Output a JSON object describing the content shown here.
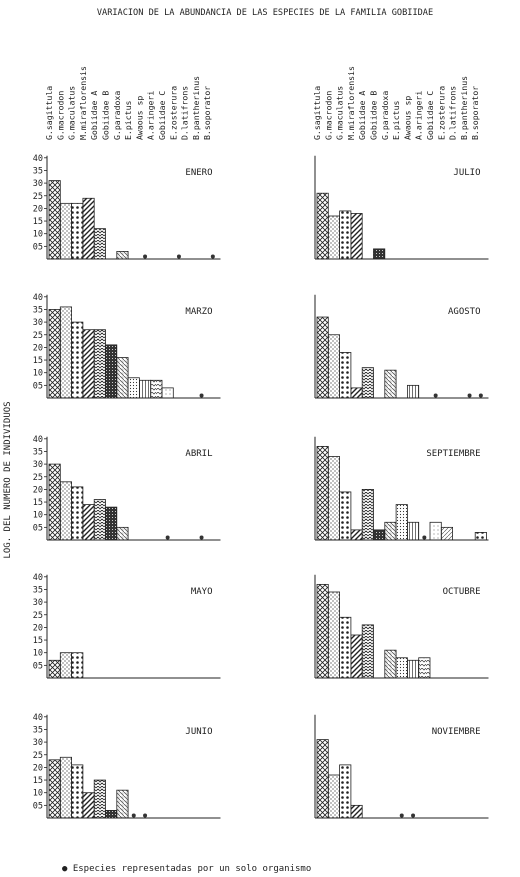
{
  "figure": {
    "title": "VARIACION DE LA ABUNDANCIA DE LAS ESPECIES DE LA FAMILIA GOBIIDAE",
    "ylabel": "LOG. DEL NUMERO DE INDIVIDUOS",
    "footnote": "● Especies representadas por un solo organismo"
  },
  "species_left": [
    "G.sagittula",
    "G.macrodon",
    "G.maculatus",
    "M.miraflorensis",
    "Gobiidae A",
    "Gobiidae B",
    "G.paradoxa",
    "E.pictus",
    "Awaous sp",
    "A.aringeri",
    "Gobiidae C",
    "E.zosterura",
    "D.latifrons",
    "B.pantherinus",
    "B.soporator"
  ],
  "species_right": [
    "G.sagittula",
    "G.macrodon",
    "G.maculatus",
    "M.miraflorensis",
    "Gobiidae A",
    "Gobiidae B",
    "G.paradoxa",
    "E.pictus",
    "Awaous sp",
    "A.aringeri",
    "Gobiidae C",
    "E.zosterura",
    "D.latifrons",
    "B.pantherinus",
    "B.soporator"
  ],
  "yticks": [
    "40",
    "35",
    "30",
    "25",
    "20",
    "15",
    "10",
    "05"
  ],
  "chart_data": [
    {
      "type": "bar",
      "title": "ENERO",
      "categories": [
        "G.sagittula",
        "G.macrodon",
        "G.maculatus",
        "M.miraflorensis",
        "Gobiidae A",
        "Gobiidae B",
        "G.paradoxa",
        "E.pictus",
        "Awaous sp",
        "A.aringeri",
        "Gobiidae C",
        "E.zosterura",
        "D.latifrons",
        "B.pantherinus",
        "B.soporator"
      ],
      "values": [
        3.1,
        2.2,
        2.2,
        2.4,
        1.2,
        0,
        0.3,
        0,
        0,
        0,
        0,
        0,
        0,
        0,
        0
      ],
      "single_organism": [
        8,
        11,
        14
      ],
      "ylim": [
        0,
        4.0
      ]
    },
    {
      "type": "bar",
      "title": "JULIO",
      "categories": [
        "G.sagittula",
        "G.macrodon",
        "G.maculatus",
        "M.miraflorensis",
        "Gobiidae A",
        "Gobiidae B",
        "G.paradoxa",
        "E.pictus",
        "Awaous sp",
        "A.aringeri",
        "Gobiidae C",
        "E.zosterura",
        "D.latifrons",
        "B.pantherinus",
        "B.soporator"
      ],
      "values": [
        2.6,
        1.7,
        1.9,
        1.8,
        0,
        0.4,
        0,
        0,
        0,
        0,
        0,
        0,
        0,
        0,
        0
      ],
      "single_organism": [],
      "ylim": [
        0,
        4.0
      ]
    },
    {
      "type": "bar",
      "title": "MARZO",
      "categories": [
        "G.sagittula",
        "G.macrodon",
        "G.maculatus",
        "M.miraflorensis",
        "Gobiidae A",
        "Gobiidae B",
        "G.paradoxa",
        "E.pictus",
        "Awaous sp",
        "A.aringeri",
        "Gobiidae C",
        "E.zosterura",
        "D.latifrons",
        "B.pantherinus",
        "B.soporator"
      ],
      "values": [
        3.5,
        3.6,
        3.0,
        2.7,
        2.7,
        2.1,
        1.6,
        0.8,
        0.7,
        0.7,
        0.4,
        0,
        0,
        0,
        0
      ],
      "single_organism": [
        13
      ],
      "ylim": [
        0,
        4.0
      ]
    },
    {
      "type": "bar",
      "title": "AGOSTO",
      "categories": [
        "G.sagittula",
        "G.macrodon",
        "G.maculatus",
        "M.miraflorensis",
        "Gobiidae A",
        "Gobiidae B",
        "G.paradoxa",
        "E.pictus",
        "Awaous sp",
        "A.aringeri",
        "Gobiidae C",
        "E.zosterura",
        "D.latifrons",
        "B.pantherinus",
        "B.soporator"
      ],
      "values": [
        3.2,
        2.5,
        1.8,
        0.4,
        1.2,
        0,
        1.1,
        0,
        0.5,
        0,
        0,
        0,
        0,
        0,
        0
      ],
      "single_organism": [
        10,
        13,
        14
      ],
      "ylim": [
        0,
        4.0
      ]
    },
    {
      "type": "bar",
      "title": "ABRIL",
      "categories": [
        "G.sagittula",
        "G.macrodon",
        "G.maculatus",
        "M.miraflorensis",
        "Gobiidae A",
        "Gobiidae B",
        "G.paradoxa",
        "E.pictus",
        "Awaous sp",
        "A.aringeri",
        "Gobiidae C",
        "E.zosterura",
        "D.latifrons",
        "B.pantherinus",
        "B.soporator"
      ],
      "values": [
        3.0,
        2.3,
        2.1,
        1.4,
        1.6,
        1.3,
        0.5,
        0,
        0,
        0,
        0,
        0,
        0,
        0,
        0
      ],
      "single_organism": [
        10,
        13
      ],
      "ylim": [
        0,
        4.0
      ]
    },
    {
      "type": "bar",
      "title": "SEPTIEMBRE",
      "categories": [
        "G.sagittula",
        "G.macrodon",
        "G.maculatus",
        "M.miraflorensis",
        "Gobiidae A",
        "Gobiidae B",
        "G.paradoxa",
        "E.pictus",
        "Awaous sp",
        "A.aringeri",
        "Gobiidae C",
        "E.zosterura",
        "D.latifrons",
        "B.pantherinus",
        "B.soporator"
      ],
      "values": [
        3.7,
        3.3,
        1.9,
        0.4,
        2.0,
        0.4,
        0.7,
        1.4,
        0.7,
        0,
        0.7,
        0.5,
        0,
        0,
        0.3
      ],
      "single_organism": [
        9
      ],
      "ylim": [
        0,
        4.0
      ]
    },
    {
      "type": "bar",
      "title": "MAYO",
      "categories": [
        "G.sagittula",
        "G.macrodon",
        "G.maculatus",
        "M.miraflorensis",
        "Gobiidae A",
        "Gobiidae B",
        "G.paradoxa",
        "E.pictus",
        "Awaous sp",
        "A.aringeri",
        "Gobiidae C",
        "E.zosterura",
        "D.latifrons",
        "B.pantherinus",
        "B.soporator"
      ],
      "values": [
        0.7,
        1.0,
        1.0,
        0,
        0,
        0,
        0,
        0,
        0,
        0,
        0,
        0,
        0,
        0,
        0
      ],
      "single_organism": [],
      "ylim": [
        0,
        4.0
      ]
    },
    {
      "type": "bar",
      "title": "OCTUBRE",
      "categories": [
        "G.sagittula",
        "G.macrodon",
        "G.maculatus",
        "M.miraflorensis",
        "Gobiidae A",
        "Gobiidae B",
        "G.paradoxa",
        "E.pictus",
        "Awaous sp",
        "A.aringeri",
        "Gobiidae C",
        "E.zosterura",
        "D.latifrons",
        "B.pantherinus",
        "B.soporator"
      ],
      "values": [
        3.7,
        3.4,
        2.4,
        1.7,
        2.1,
        0,
        1.1,
        0.8,
        0.7,
        0.8,
        0,
        0,
        0,
        0,
        0
      ],
      "single_organism": [],
      "ylim": [
        0,
        4.0
      ]
    },
    {
      "type": "bar",
      "title": "JUNIO",
      "categories": [
        "G.sagittula",
        "G.macrodon",
        "G.maculatus",
        "M.miraflorensis",
        "Gobiidae A",
        "Gobiidae B",
        "G.paradoxa",
        "E.pictus",
        "Awaous sp",
        "A.aringeri",
        "Gobiidae C",
        "E.zosterura",
        "D.latifrons",
        "B.pantherinus",
        "B.soporator"
      ],
      "values": [
        2.3,
        2.4,
        2.1,
        1.0,
        1.5,
        0.3,
        1.1,
        0,
        0,
        0,
        0,
        0,
        0,
        0,
        0
      ],
      "single_organism": [
        7,
        8
      ],
      "ylim": [
        0,
        4.0
      ]
    },
    {
      "type": "bar",
      "title": "NOVIEMBRE",
      "categories": [
        "G.sagittula",
        "G.macrodon",
        "G.maculatus",
        "M.miraflorensis",
        "Gobiidae A",
        "Gobiidae B",
        "G.paradoxa",
        "E.pictus",
        "Awaous sp",
        "A.aringeri",
        "Gobiidae C",
        "E.zosterura",
        "D.latifrons",
        "B.pantherinus",
        "B.soporator"
      ],
      "values": [
        3.1,
        1.7,
        2.1,
        0.5,
        0,
        0,
        0,
        0,
        0,
        0,
        0,
        0,
        0,
        0,
        0
      ],
      "single_organism": [
        7,
        8
      ],
      "ylim": [
        0,
        4.0
      ]
    }
  ]
}
